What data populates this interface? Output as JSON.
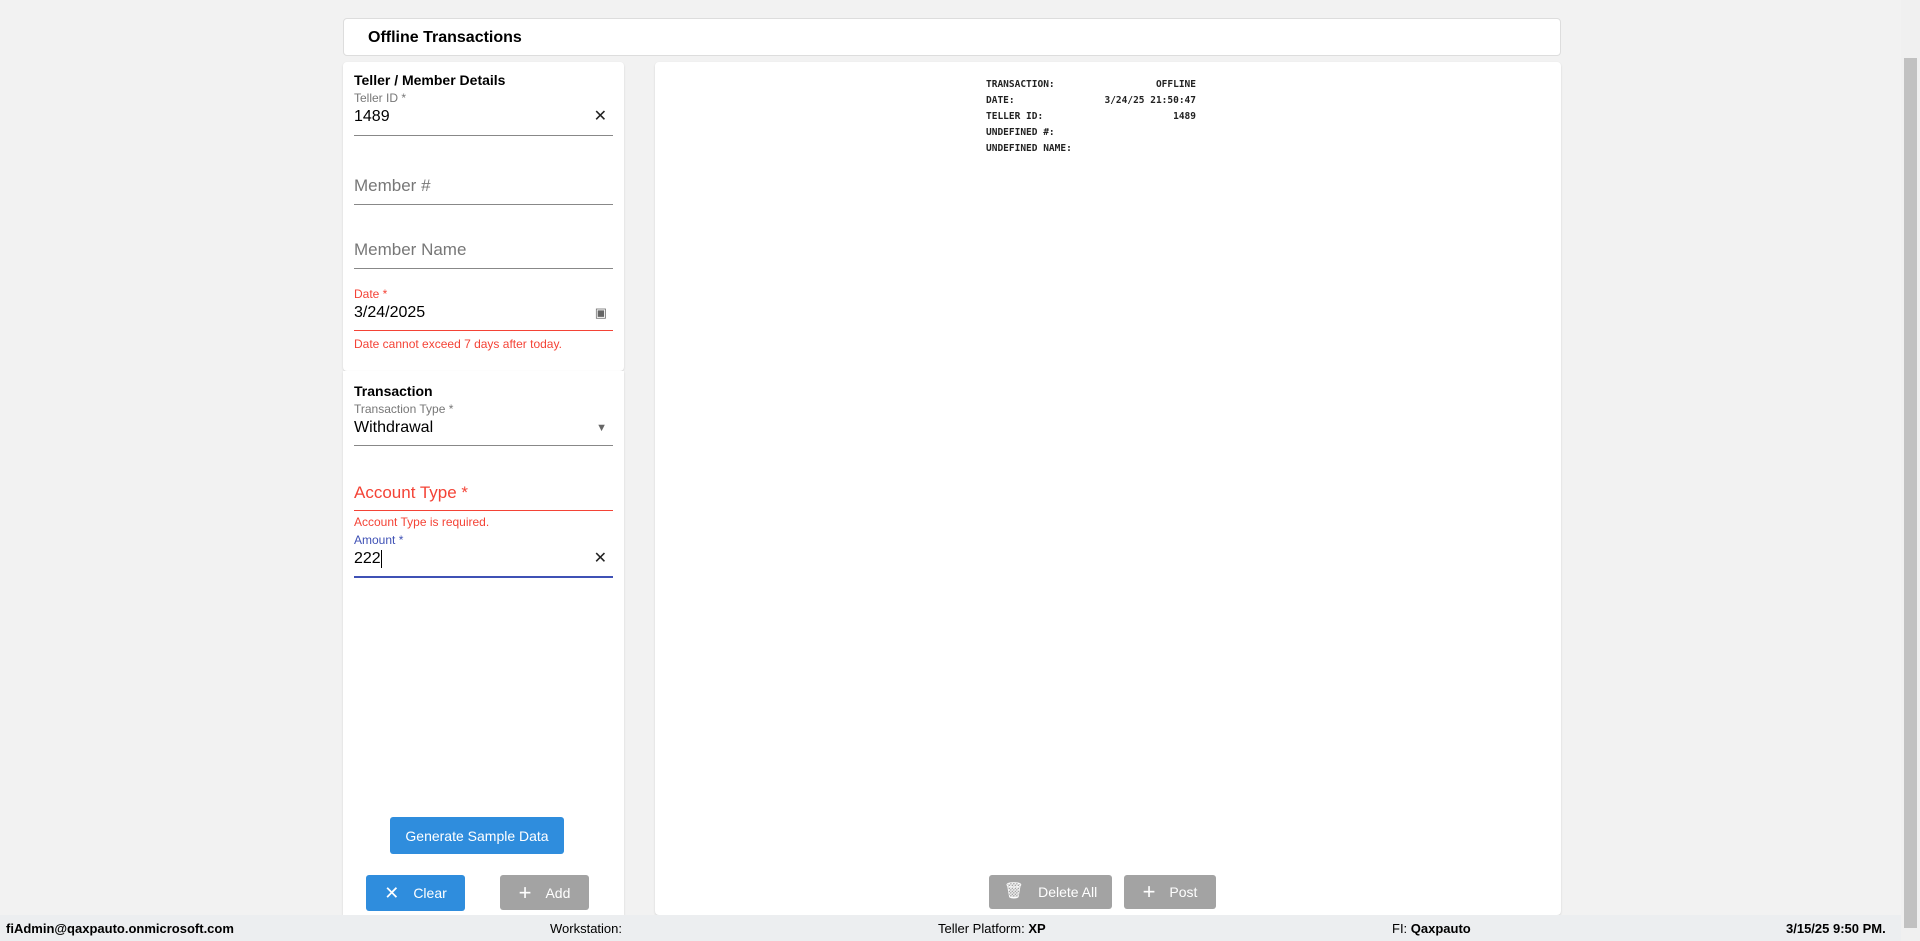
{
  "header": {
    "title": "Offline Transactions"
  },
  "teller_section": {
    "title": "Teller / Member Details",
    "teller_id": {
      "label": "Teller ID *",
      "value": "1489"
    },
    "member_number": {
      "placeholder": "Member #"
    },
    "member_name": {
      "placeholder": "Member Name"
    },
    "date": {
      "label": "Date *",
      "value": "3/24/2025",
      "error": "Date cannot exceed 7 days after today."
    }
  },
  "transaction_section": {
    "title": "Transaction",
    "transaction_type": {
      "label": "Transaction Type *",
      "value": "Withdrawal"
    },
    "account_type": {
      "placeholder": "Account Type *",
      "error": "Account Type is required."
    },
    "amount": {
      "label": "Amount *",
      "value": "222"
    }
  },
  "buttons": {
    "generate": "Generate Sample Data",
    "clear": "Clear",
    "add": "Add",
    "delete_all": "Delete All",
    "post": "Post"
  },
  "receipt": [
    {
      "k": "TRANSACTION:",
      "v": "OFFLINE"
    },
    {
      "k": "DATE:",
      "v": "3/24/25 21:50:47"
    },
    {
      "k": "TELLER ID:",
      "v": "1489"
    },
    {
      "k": "UNDEFINED #:",
      "v": ""
    },
    {
      "k": "UNDEFINED NAME:",
      "v": ""
    }
  ],
  "footer": {
    "user": "fiAdmin@qaxpauto.onmicrosoft.com",
    "workstation_label": "Workstation:",
    "platform_label": "Teller Platform:",
    "platform": "XP",
    "fi_label": "FI:",
    "fi": "Qaxpauto",
    "datetime": "3/15/25 9:50 PM."
  },
  "colors": {
    "primary": "#2f8ddd",
    "error": "#f44336",
    "focus": "#3f51b5",
    "disabled": "#a3a3a3"
  }
}
